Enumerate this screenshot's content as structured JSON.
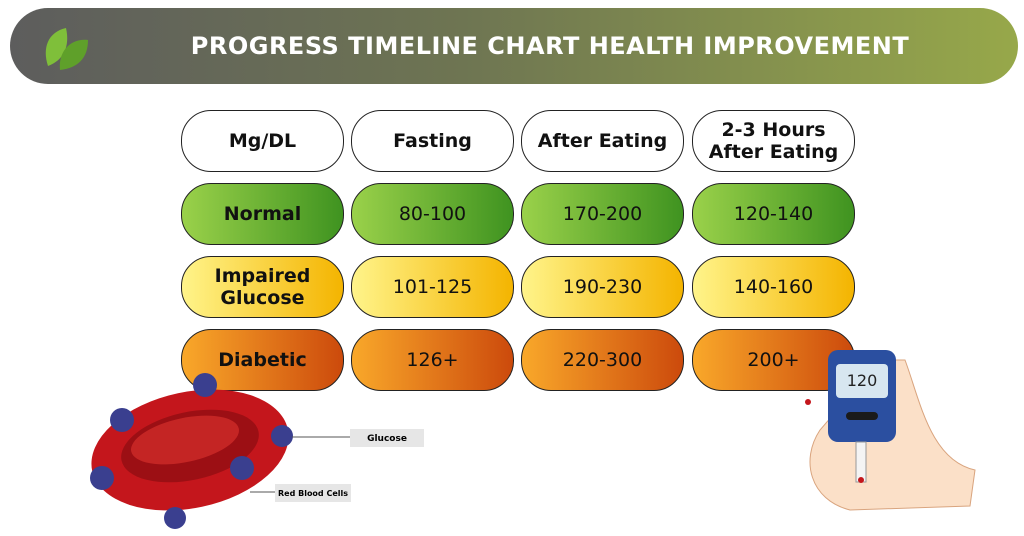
{
  "header": {
    "title": "PROGRESS TIMELINE CHART HEALTH IMPROVEMENT"
  },
  "table": {
    "columns": [
      "Mg/DL",
      "Fasting",
      "After Eating",
      "2-3 Hours\nAfter Eating"
    ],
    "rows": [
      [
        "Normal",
        "80-100",
        "170-200",
        "120-140"
      ],
      [
        "Impaired\nGlucose",
        "101-125",
        "190-230",
        "140-160"
      ],
      [
        "Diabetic",
        "126+",
        "220-300",
        "200+"
      ]
    ]
  },
  "illustration": {
    "glucose_label": "Glucose",
    "cells_label": "Red Blood Cells",
    "meter_reading": "120"
  }
}
